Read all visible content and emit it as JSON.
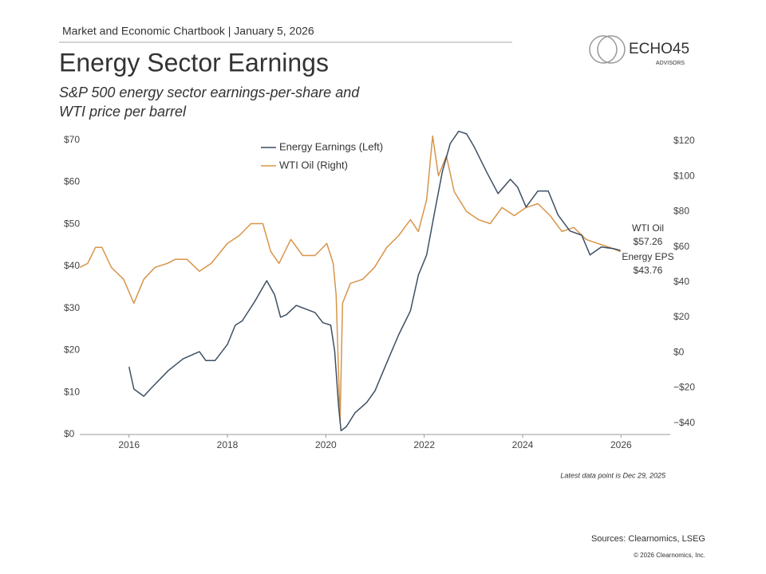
{
  "header": {
    "kicker": "Market and Economic Chartbook | January 5, 2026",
    "title": "Energy Sector Earnings",
    "subtitle": [
      "S&P 500 energy sector earnings-per-share and",
      "WTI price per barrel"
    ],
    "logo": "ECHO45",
    "logo_sub": "ADVISORS"
  },
  "chart_data": {
    "type": "line",
    "xlim": [
      2015,
      2027
    ],
    "xticks": [
      2016,
      2018,
      2020,
      2022,
      2024,
      2026
    ],
    "ylim": [
      0,
      73
    ],
    "yticks": [
      {
        "value": 0,
        "label": "$0"
      },
      {
        "value": 10,
        "label": "$10"
      },
      {
        "value": 20,
        "label": "$20"
      },
      {
        "value": 30,
        "label": "$30"
      },
      {
        "value": 40,
        "label": "$40"
      },
      {
        "value": 50,
        "label": "$50"
      },
      {
        "value": 60,
        "label": "$60"
      },
      {
        "value": 70,
        "label": "$70"
      }
    ],
    "y2lim": [
      -46.5,
      127.7
    ],
    "y2ticks": [
      {
        "value": -40,
        "label": "−$40"
      },
      {
        "value": -20,
        "label": "−$20"
      },
      {
        "value": 0,
        "label": "$0"
      },
      {
        "value": 20,
        "label": "$20"
      },
      {
        "value": 40,
        "label": "$40"
      },
      {
        "value": 60,
        "label": "$60"
      },
      {
        "value": 80,
        "label": "$80"
      },
      {
        "value": 100,
        "label": "$100"
      },
      {
        "value": 120,
        "label": "$120"
      }
    ],
    "series": [
      {
        "name": "Energy Earnings (Left)",
        "color": "#3d4f63",
        "axis": "y",
        "end_name": "Energy EPS",
        "end_label": "$43.76",
        "x": [
          2016.0,
          2016.1,
          2016.3,
          2016.45,
          2016.8,
          2017.1,
          2017.43,
          2017.56,
          2017.75,
          2018.0,
          2018.16,
          2018.3,
          2018.56,
          2018.8,
          2018.96,
          2019.08,
          2019.2,
          2019.4,
          2019.6,
          2019.78,
          2019.94,
          2020.1,
          2020.18,
          2020.26,
          2020.31,
          2020.42,
          2020.59,
          2020.83,
          2021.0,
          2021.24,
          2021.48,
          2021.72,
          2021.88,
          2022.05,
          2022.2,
          2022.37,
          2022.53,
          2022.7,
          2022.86,
          2023.02,
          2023.26,
          2023.5,
          2023.75,
          2023.9,
          2024.07,
          2024.31,
          2024.52,
          2024.72,
          2024.96,
          2025.2,
          2025.37,
          2025.6,
          2025.85,
          2025.99
        ],
        "values": [
          16.1,
          10.8,
          9.1,
          11,
          15.2,
          18,
          19.7,
          17.6,
          17.6,
          21.4,
          26,
          27,
          31.7,
          36.6,
          33.2,
          27.9,
          28.5,
          30.7,
          29.8,
          29,
          26.6,
          26,
          19.9,
          6.6,
          0.9,
          1.9,
          5.1,
          7.6,
          10.4,
          17.1,
          23.7,
          29.4,
          37.9,
          42.7,
          52.2,
          62.6,
          69.2,
          72.1,
          71.5,
          68.3,
          62.6,
          57.3,
          60.7,
          58.8,
          54.1,
          57.9,
          57.9,
          52.2,
          48.4,
          47.4,
          42.7,
          44.6,
          44.2,
          43.76
        ]
      },
      {
        "name": "WTI Oil (Right)",
        "color": "#d8954a",
        "axis": "y2",
        "end_name": "WTI Oil",
        "end_label": "$57.26",
        "x": [
          2015.0,
          2015.16,
          2015.32,
          2015.45,
          2015.64,
          2015.89,
          2016.1,
          2016.3,
          2016.53,
          2016.78,
          2016.94,
          2017.18,
          2017.43,
          2017.67,
          2018.0,
          2018.24,
          2018.48,
          2018.72,
          2018.88,
          2019.05,
          2019.29,
          2019.53,
          2019.78,
          2020.02,
          2020.15,
          2020.21,
          2020.29,
          2020.34,
          2020.5,
          2020.75,
          2020.99,
          2021.24,
          2021.48,
          2021.72,
          2021.88,
          2022.05,
          2022.17,
          2022.29,
          2022.45,
          2022.61,
          2022.86,
          2023.1,
          2023.34,
          2023.58,
          2023.83,
          2024.07,
          2024.31,
          2024.56,
          2024.8,
          2025.04,
          2025.29,
          2025.53,
          2025.77,
          2025.99
        ],
        "values": [
          48.4,
          50.6,
          59.7,
          59.7,
          48.4,
          41.6,
          28,
          41.6,
          48.4,
          50.6,
          52.9,
          52.9,
          46.1,
          50.6,
          61.9,
          66.4,
          73.2,
          73.2,
          57.4,
          50.6,
          64.2,
          55.1,
          55.1,
          61.9,
          50.6,
          32.5,
          -39.8,
          28,
          39.3,
          41.6,
          48.4,
          59.7,
          66.4,
          75.5,
          68.7,
          86.8,
          122.9,
          100.3,
          111.6,
          91.3,
          80,
          75.5,
          73.2,
          82.3,
          77.7,
          82.3,
          84.5,
          77.7,
          68.7,
          71,
          64.2,
          61.9,
          59.7,
          57.26
        ]
      }
    ],
    "note": "Latest data point is Dec 29, 2025"
  },
  "footer": {
    "sources": "Sources: Clearnomics, LSEG",
    "copyright": "© 2026 Clearnomics, Inc."
  }
}
